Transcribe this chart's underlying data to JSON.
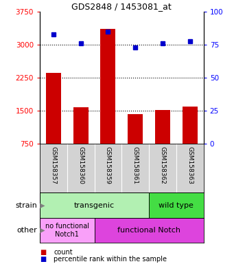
{
  "title": "GDS2848 / 1453081_at",
  "samples": [
    "GSM158357",
    "GSM158360",
    "GSM158359",
    "GSM158361",
    "GSM158362",
    "GSM158363"
  ],
  "counts": [
    2370,
    1590,
    3370,
    1420,
    1520,
    1600
  ],
  "percentiles": [
    83,
    76,
    85,
    73,
    76,
    78
  ],
  "ylim_left": [
    750,
    3750
  ],
  "ylim_right": [
    0,
    100
  ],
  "yticks_left": [
    750,
    1500,
    2250,
    3000,
    3750
  ],
  "yticks_right": [
    0,
    25,
    50,
    75,
    100
  ],
  "bar_color": "#cc0000",
  "dot_color": "#0000cc",
  "strain_transgenic_label": "transgenic",
  "strain_wildtype_label": "wild type",
  "other_nofunc_label": "no functional\nNotch1",
  "other_func_label": "functional Notch",
  "strain_label": "strain",
  "other_label": "other",
  "legend_count": "count",
  "legend_percentile": "percentile rank within the sample",
  "tick_area_color": "#d3d3d3",
  "strain_transgenic_color": "#b2f0b2",
  "strain_wildtype_color": "#44dd44",
  "other_nofunc_color": "#f9a0f9",
  "other_func_color": "#dd44dd",
  "grid_color": "#000000",
  "spine_color": "#000000"
}
